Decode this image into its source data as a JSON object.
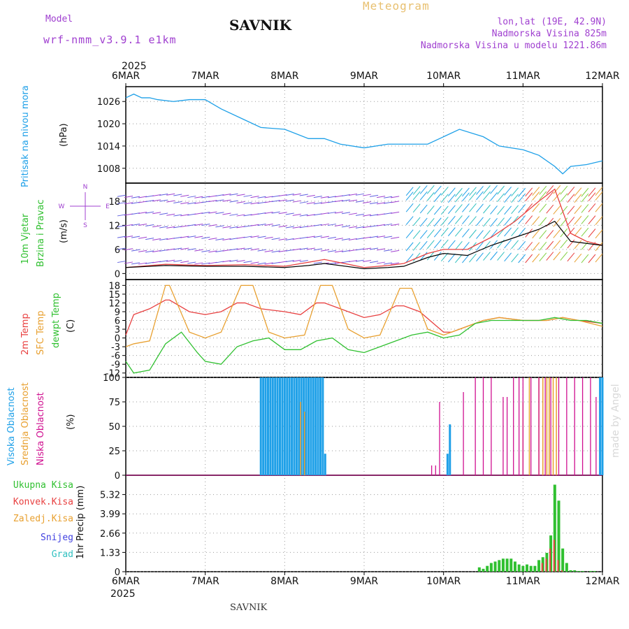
{
  "header": {
    "model_label": "Model",
    "model_name": "wrf-nmm_v3.9.1 e1km",
    "station": "SAVNIK",
    "product": "Meteogram",
    "lonlat": "lon,lat (19E, 42.9N)",
    "altitude": "Nadmorska Visina 825m",
    "model_altitude": "Nadmorska Visina u modelu 1221.86m",
    "footer_station": "SAVNIK",
    "credit": "made by Angel"
  },
  "colors": {
    "purple": "#a040d0",
    "blue": "#1ea0e8",
    "red": "#e84040",
    "orange": "#e8a030",
    "green": "#30c030",
    "magenta": "#d01090",
    "navy": "#4040e0",
    "cyan": "#30c0c0",
    "title_orange": "#e8c070"
  },
  "time_axis": {
    "year_label": "2025",
    "ticks": [
      "6MAR",
      "7MAR",
      "8MAR",
      "9MAR",
      "10MAR",
      "11MAR",
      "12MAR"
    ]
  },
  "wind_compass": {
    "north": "N",
    "south": "S",
    "east": "E",
    "west": "W"
  },
  "chart_data": [
    {
      "type": "line",
      "panel": "pressure",
      "ylabel_main": "Pritisak na nivou mora",
      "ylabel_unit": "(hPa)",
      "yticks": [
        "1026",
        "1020",
        "1014",
        "1008"
      ],
      "ylim": [
        1004,
        1030
      ],
      "xlim": [
        0,
        6
      ],
      "grid": true,
      "x": [
        0,
        0.1,
        0.2,
        0.3,
        0.4,
        0.6,
        0.8,
        1.0,
        1.2,
        1.5,
        1.7,
        2.0,
        2.3,
        2.5,
        2.7,
        3.0,
        3.3,
        3.6,
        3.8,
        4.0,
        4.2,
        4.5,
        4.7,
        5.0,
        5.2,
        5.4,
        5.5,
        5.6,
        5.8,
        6.0
      ],
      "values": [
        1027,
        1028,
        1027,
        1027,
        1026.5,
        1026,
        1026.5,
        1026.5,
        1024,
        1021,
        1019,
        1018.5,
        1016,
        1016,
        1014.5,
        1013.5,
        1014.5,
        1014.5,
        1014.5,
        1016.5,
        1018.5,
        1016.5,
        1014,
        1013,
        1011.5,
        1008.5,
        1006.5,
        1008.5,
        1009,
        1010
      ]
    },
    {
      "type": "line",
      "panel": "wind",
      "ylabel_main": "10m Vjetar",
      "ylabel_sub": "Brzina i Pravac",
      "ylabel_unit": "(m/s)",
      "yticks": [
        "18",
        "12",
        "6",
        "0"
      ],
      "ylim": [
        -1.5,
        22.5
      ],
      "xlim": [
        0,
        6
      ],
      "series": [
        {
          "name": "speed",
          "x": [
            0,
            0.5,
            1.0,
            1.5,
            2.0,
            2.3,
            2.5,
            3.0,
            3.3,
            3.5,
            3.8,
            4.0,
            4.3,
            4.6,
            4.9,
            5.2,
            5.4,
            5.6,
            5.8,
            6.0
          ],
          "values": [
            1.5,
            2.0,
            1.8,
            1.8,
            1.5,
            2.0,
            2.5,
            1.2,
            1.5,
            1.8,
            4.0,
            5.0,
            4.5,
            7.0,
            9.0,
            11.0,
            13.0,
            8.0,
            7.5,
            7.0
          ]
        },
        {
          "name": "gust",
          "x": [
            0,
            0.5,
            1.0,
            1.5,
            2.0,
            2.3,
            2.5,
            3.0,
            3.3,
            3.5,
            3.8,
            4.0,
            4.3,
            4.6,
            4.9,
            5.2,
            5.4,
            5.6,
            5.8,
            6.0
          ],
          "values": [
            1.5,
            2.3,
            2.0,
            2.2,
            1.8,
            2.8,
            3.5,
            1.5,
            2.0,
            2.5,
            5.0,
            6.0,
            6.0,
            9.0,
            13.0,
            18.0,
            21.0,
            10.0,
            8.0,
            7.0
          ]
        }
      ]
    },
    {
      "type": "line",
      "panel": "temperature",
      "ylabel_lines": [
        "2m Temp",
        "SFC Temp",
        "dewpt Temp"
      ],
      "ylabel_unit": "(C)",
      "yticks": [
        "18",
        "15",
        "12",
        "9",
        "6",
        "3",
        "0",
        "-3",
        "-6",
        "-9",
        "-12"
      ],
      "ylim": [
        -13.5,
        20
      ],
      "xlim": [
        0,
        6
      ],
      "series": [
        {
          "name": "2m Temp",
          "x": [
            0,
            0.1,
            0.3,
            0.5,
            0.55,
            0.8,
            1.0,
            1.2,
            1.4,
            1.5,
            1.7,
            2.0,
            2.2,
            2.4,
            2.5,
            2.7,
            3.0,
            3.2,
            3.4,
            3.5,
            3.7,
            4.0,
            4.1,
            4.3,
            4.5,
            4.7,
            5.0,
            5.3,
            5.5,
            5.7,
            6.0
          ],
          "values": [
            1,
            8,
            10,
            13,
            13,
            9,
            8,
            9,
            12,
            12,
            10,
            9,
            8,
            12,
            12,
            10,
            7,
            8,
            11,
            11,
            9,
            2,
            2,
            4,
            6,
            7,
            6,
            6,
            7,
            6,
            5
          ]
        },
        {
          "name": "SFC Temp",
          "x": [
            0,
            0.1,
            0.3,
            0.5,
            0.55,
            0.8,
            1.0,
            1.2,
            1.45,
            1.6,
            1.8,
            2.0,
            2.25,
            2.45,
            2.6,
            2.8,
            3.0,
            3.2,
            3.45,
            3.6,
            3.8,
            4.0,
            4.1,
            4.3,
            4.5,
            4.7,
            5.0,
            5.3,
            5.5,
            5.7,
            6.0
          ],
          "values": [
            -3,
            -2,
            -1,
            18,
            18,
            2,
            0,
            2,
            18,
            18,
            2,
            0,
            1,
            18,
            18,
            3,
            0,
            1,
            17,
            17,
            3,
            1,
            2,
            4,
            6,
            7,
            6,
            6,
            7,
            6,
            4
          ]
        },
        {
          "name": "dewpt Temp",
          "x": [
            0,
            0.1,
            0.3,
            0.5,
            0.7,
            0.9,
            1.0,
            1.2,
            1.4,
            1.6,
            1.8,
            2.0,
            2.2,
            2.4,
            2.6,
            2.8,
            3.0,
            3.2,
            3.4,
            3.6,
            3.8,
            4.0,
            4.2,
            4.4,
            4.6,
            4.8,
            5.0,
            5.2,
            5.4,
            5.6,
            5.8,
            6.0
          ],
          "values": [
            -8,
            -12,
            -11,
            -2,
            2,
            -5,
            -8,
            -9,
            -3,
            -1,
            0,
            -4,
            -4,
            -1,
            0,
            -4,
            -5,
            -3,
            -1,
            1,
            2,
            0,
            1,
            5,
            6,
            6,
            6,
            6,
            7,
            6,
            6,
            5
          ]
        }
      ]
    },
    {
      "type": "bar",
      "panel": "cloud",
      "ylabel_lines": [
        "Visoka Oblacnost",
        "Srednja Oblacnost",
        "Niska Oblacnost"
      ],
      "ylabel_unit": "(%)",
      "yticks": [
        "100",
        "75",
        "50",
        "25",
        "0"
      ],
      "ylim": [
        0,
        100
      ],
      "xlim": [
        0,
        6
      ],
      "series": [
        {
          "name": "Visoka Oblacnost",
          "x": [
            1.7,
            1.73,
            1.76,
            1.79,
            1.82,
            1.85,
            1.88,
            1.91,
            1.94,
            1.97,
            2.0,
            2.03,
            2.06,
            2.09,
            2.12,
            2.15,
            2.18,
            2.21,
            2.24,
            2.27,
            2.3,
            2.33,
            2.36,
            2.39,
            2.42,
            2.45,
            2.48,
            2.51,
            4.05,
            4.08,
            5.97,
            6.0
          ],
          "values": [
            100,
            100,
            100,
            100,
            100,
            100,
            100,
            100,
            100,
            100,
            100,
            100,
            100,
            100,
            100,
            100,
            100,
            100,
            100,
            100,
            100,
            100,
            100,
            100,
            100,
            100,
            100,
            22,
            22,
            52,
            100,
            100
          ]
        },
        {
          "name": "Srednja Oblacnost",
          "x": [
            2.2,
            2.25,
            5.0,
            5.08,
            5.2,
            5.25,
            5.3,
            5.33,
            5.38,
            5.42
          ],
          "values": [
            75,
            65,
            75,
            100,
            100,
            100,
            100,
            100,
            100,
            100
          ]
        },
        {
          "name": "Niska Oblacnost",
          "x": [
            3.85,
            3.9,
            3.95,
            4.25,
            4.4,
            4.5,
            4.6,
            4.75,
            4.8,
            4.88,
            4.95,
            5.0,
            5.1,
            5.2,
            5.28,
            5.35,
            5.45,
            5.55,
            5.65,
            5.75,
            5.85,
            5.92
          ],
          "values": [
            10,
            10,
            75,
            85,
            100,
            100,
            100,
            80,
            80,
            100,
            100,
            100,
            100,
            100,
            100,
            100,
            100,
            100,
            100,
            100,
            100,
            80
          ]
        }
      ]
    },
    {
      "type": "bar",
      "panel": "precip",
      "ylabel_unit": "1hr Precip (mm)",
      "legend": [
        "Ukupna Kisa",
        "Konvek.Kisa",
        "Zaledj.Kisa",
        "Snijeg",
        "Grad"
      ],
      "yticks": [
        "5.32",
        "3.99",
        "2.66",
        "1.33",
        "0"
      ],
      "ylim": [
        0,
        6.65
      ],
      "xlim": [
        0,
        6
      ],
      "x": [
        4.45,
        4.5,
        4.55,
        4.6,
        4.65,
        4.7,
        4.75,
        4.8,
        4.85,
        4.9,
        4.95,
        5.0,
        5.05,
        5.1,
        5.15,
        5.2,
        5.25,
        5.3,
        5.35,
        5.4,
        5.45,
        5.5,
        5.55,
        5.6,
        5.65,
        5.7,
        5.75,
        5.8,
        5.85,
        5.9
      ],
      "values": [
        0.3,
        0.2,
        0.4,
        0.6,
        0.7,
        0.8,
        0.9,
        0.9,
        0.9,
        0.7,
        0.5,
        0.4,
        0.5,
        0.4,
        0.4,
        0.8,
        1.0,
        1.3,
        2.5,
        6.0,
        4.9,
        1.6,
        0.6,
        0.1,
        0.1,
        0.05,
        0.05,
        0.0,
        0.05,
        0.05
      ],
      "convective": [
        0,
        0,
        0,
        0,
        0,
        0,
        0,
        0,
        0,
        0,
        0,
        0,
        0,
        0,
        0,
        0,
        0.6,
        0.9,
        1.6,
        2.2,
        0.8,
        0.1,
        0,
        0,
        0,
        0,
        0,
        0,
        0,
        0
      ]
    }
  ]
}
